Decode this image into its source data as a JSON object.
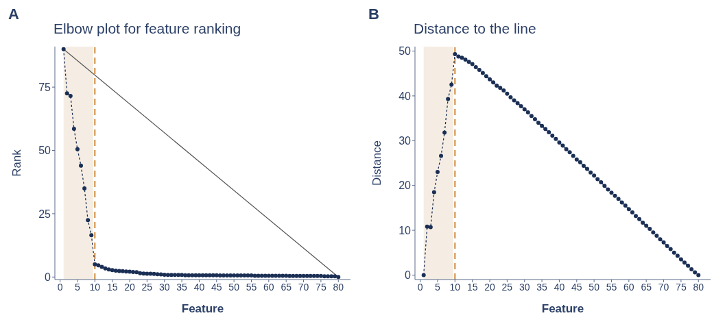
{
  "chart_data": [
    {
      "type": "line",
      "title": "Elbow plot for feature ranking",
      "xlabel": "Feature",
      "ylabel": "Rank",
      "annotations": [
        "A"
      ],
      "x": [
        1,
        2,
        3,
        4,
        5,
        6,
        7,
        8,
        9,
        10,
        11,
        12,
        13,
        14,
        15,
        16,
        17,
        18,
        19,
        20,
        21,
        22,
        23,
        24,
        25,
        26,
        27,
        28,
        29,
        30,
        31,
        32,
        33,
        34,
        35,
        36,
        37,
        38,
        39,
        40,
        41,
        42,
        43,
        44,
        45,
        46,
        47,
        48,
        49,
        50,
        51,
        52,
        53,
        54,
        55,
        56,
        57,
        58,
        59,
        60,
        61,
        62,
        63,
        64,
        65,
        66,
        67,
        68,
        69,
        70,
        71,
        72,
        73,
        74,
        75,
        76,
        77,
        78,
        79,
        80
      ],
      "series": [
        {
          "x": [
            1,
            80
          ],
          "values": [
            90,
            0
          ],
          "color": "#555555",
          "marker": "none",
          "line_style": "solid"
        },
        {
          "color": "#1b2f55",
          "marker": "circle",
          "line_style": "dashed",
          "values": [
            90,
            72.5,
            71.5,
            58.5,
            50.5,
            44,
            35,
            22.5,
            16.5,
            5,
            4.6,
            4.0,
            3.4,
            3.0,
            2.7,
            2.5,
            2.4,
            2.3,
            2.2,
            2.1,
            2.0,
            1.9,
            1.5,
            1.4,
            1.3,
            1.3,
            1.2,
            1.1,
            1.0,
            0.9,
            0.8,
            0.8,
            0.8,
            0.8,
            0.8,
            0.7,
            0.7,
            0.7,
            0.7,
            0.7,
            0.7,
            0.7,
            0.7,
            0.7,
            0.7,
            0.6,
            0.6,
            0.6,
            0.6,
            0.6,
            0.6,
            0.6,
            0.6,
            0.6,
            0.6,
            0.5,
            0.5,
            0.5,
            0.5,
            0.5,
            0.5,
            0.5,
            0.5,
            0.5,
            0.5,
            0.4,
            0.4,
            0.4,
            0.4,
            0.4,
            0.4,
            0.4,
            0.4,
            0.4,
            0.4,
            0.3,
            0.3,
            0.3,
            0.3,
            0
          ]
        }
      ],
      "xlim": [
        -1.5,
        83.5
      ],
      "xticks": [
        0,
        5,
        10,
        15,
        20,
        25,
        30,
        35,
        40,
        45,
        50,
        55,
        60,
        65,
        70,
        75,
        80
      ],
      "ylim": [
        -1,
        91
      ],
      "yticks": [
        0,
        25,
        50,
        75
      ],
      "bands": [
        {
          "axis": "x",
          "from": 1,
          "to": 9.5,
          "color": "#f5ede3"
        }
      ],
      "ref_lines": [
        {
          "axis": "x",
          "value": 10,
          "color": "#d08a3a",
          "line_style": "dashed"
        }
      ],
      "grid": false
    },
    {
      "type": "line",
      "title": "Distance to the line",
      "xlabel": "Feature",
      "ylabel": "Distance",
      "annotations": [
        "B"
      ],
      "x": [
        1,
        2,
        3,
        4,
        5,
        6,
        7,
        8,
        9,
        10,
        11,
        12,
        13,
        14,
        15,
        16,
        17,
        18,
        19,
        20,
        21,
        22,
        23,
        24,
        25,
        26,
        27,
        28,
        29,
        30,
        31,
        32,
        33,
        34,
        35,
        36,
        37,
        38,
        39,
        40,
        41,
        42,
        43,
        44,
        45,
        46,
        47,
        48,
        49,
        50,
        51,
        52,
        53,
        54,
        55,
        56,
        57,
        58,
        59,
        60,
        61,
        62,
        63,
        64,
        65,
        66,
        67,
        68,
        69,
        70,
        71,
        72,
        73,
        74,
        75,
        76,
        77,
        78,
        79,
        80
      ],
      "series": [
        {
          "color": "#1b2f55",
          "marker": "circle",
          "line_style": "dashed",
          "values": [
            0,
            10.8,
            10.7,
            18.5,
            23.0,
            26.6,
            31.8,
            39.3,
            42.5,
            49.3,
            48.8,
            48.5,
            48.1,
            47.6,
            47.1,
            46.4,
            45.8,
            45.1,
            44.4,
            43.7,
            43.0,
            42.3,
            41.8,
            41.2,
            40.5,
            39.7,
            39.0,
            38.4,
            37.7,
            37.0,
            36.3,
            35.5,
            34.8,
            34.0,
            33.3,
            32.6,
            31.9,
            31.1,
            30.4,
            29.6,
            28.9,
            28.1,
            27.4,
            26.6,
            25.8,
            25.2,
            24.4,
            23.7,
            22.9,
            22.2,
            21.4,
            20.7,
            19.9,
            19.1,
            18.4,
            17.7,
            17.0,
            16.2,
            15.5,
            14.7,
            14.0,
            13.2,
            12.5,
            11.7,
            11.0,
            10.3,
            9.5,
            8.8,
            8.0,
            7.3,
            6.5,
            5.8,
            5.0,
            4.3,
            3.5,
            2.8,
            2.1,
            1.3,
            0.6,
            0
          ]
        }
      ],
      "xlim": [
        -1.5,
        83.5
      ],
      "xticks": [
        0,
        5,
        10,
        15,
        20,
        25,
        30,
        35,
        40,
        45,
        50,
        55,
        60,
        65,
        70,
        75,
        80
      ],
      "ylim": [
        -1,
        51
      ],
      "yticks": [
        0,
        10,
        20,
        30,
        40,
        50
      ],
      "bands": [
        {
          "axis": "x",
          "from": 1,
          "to": 9.5,
          "color": "#f5ede3"
        }
      ],
      "ref_lines": [
        {
          "axis": "x",
          "value": 10,
          "color": "#d08a3a",
          "line_style": "dashed"
        }
      ],
      "grid": false
    }
  ]
}
